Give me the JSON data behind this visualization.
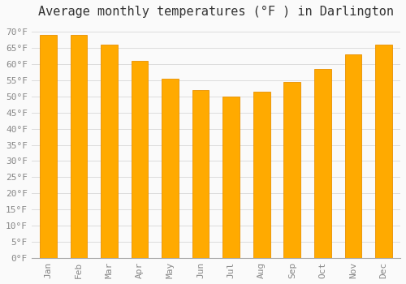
{
  "title": "Average monthly temperatures (°F ) in Darlington",
  "months": [
    "Jan",
    "Feb",
    "Mar",
    "Apr",
    "May",
    "Jun",
    "Jul",
    "Aug",
    "Sep",
    "Oct",
    "Nov",
    "Dec"
  ],
  "values": [
    69,
    69,
    66,
    61,
    55.5,
    52,
    50,
    51.5,
    54.5,
    58.5,
    63,
    66
  ],
  "bar_color_top": "#FFAA00",
  "bar_color_bottom": "#FFB733",
  "bar_edge_color": "#E89000",
  "background_color": "#FAFAFA",
  "grid_color": "#DDDDDD",
  "ylim": [
    0,
    73
  ],
  "yticks": [
    0,
    5,
    10,
    15,
    20,
    25,
    30,
    35,
    40,
    45,
    50,
    55,
    60,
    65,
    70
  ],
  "title_fontsize": 11,
  "tick_fontsize": 8,
  "font_family": "monospace",
  "title_color": "#333333",
  "tick_color": "#888888"
}
